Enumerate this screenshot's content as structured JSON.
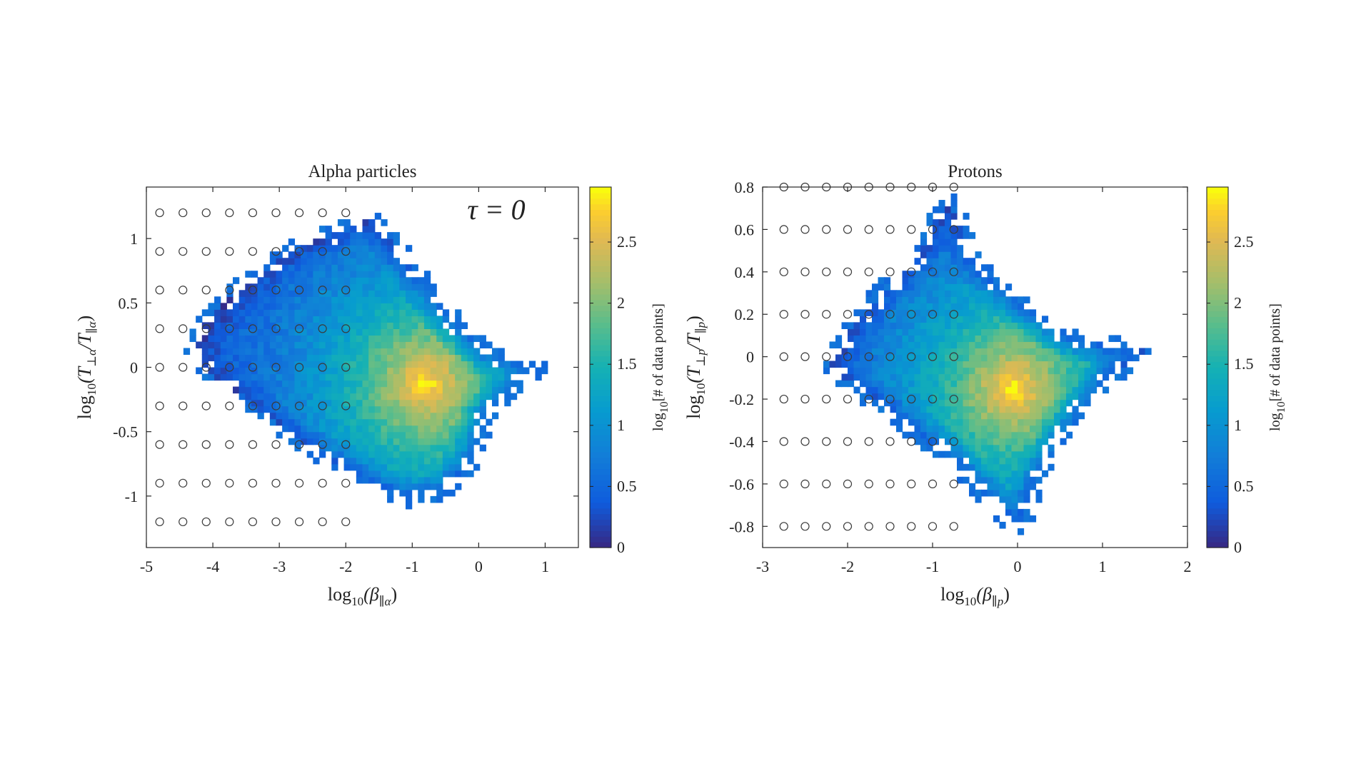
{
  "colors": {
    "background": "#ffffff",
    "axis": "#262626",
    "marker": "#3a3a3a"
  },
  "colormap": "parula",
  "chart_data": [
    {
      "type": "heatmap",
      "title": "Alpha particles",
      "annotation": "τ = 0",
      "xlabel": "log10(β∥α)",
      "xlabel_parts": {
        "base": "log",
        "sub": "10",
        "arg": "(β",
        "argsub": "∥α",
        "close": ")"
      },
      "ylabel": "log10(T⊥α/T∥α)",
      "ylabel_parts": {
        "base": "log",
        "sub": "10",
        "a": "(T",
        "asub": "⊥α",
        "mid": "/T",
        "bsub": "∥α",
        "close": ")"
      },
      "xlim": [
        -5,
        1.5
      ],
      "ylim": [
        -1.4,
        1.4
      ],
      "xticks": [
        -5,
        -4,
        -3,
        -2,
        -1,
        0,
        1
      ],
      "xtick_labels": [
        "-5",
        "-4",
        "-3",
        "-2",
        "-1",
        "0",
        "1"
      ],
      "yticks": [
        -1,
        -0.5,
        0,
        0.5,
        1
      ],
      "ytick_labels": [
        "-1",
        "-0.5",
        "0",
        "0.5",
        "1"
      ],
      "colorbar": {
        "label": "log10[# of data points]",
        "label_parts": {
          "base": "log",
          "sub": "10",
          "rest": "[# of data points]"
        },
        "range": [
          0,
          2.95
        ],
        "ticks": [
          0,
          0.5,
          1,
          1.5,
          2,
          2.5
        ],
        "tick_labels": [
          "0",
          "0.5",
          "1",
          "1.5",
          "2",
          "2.5"
        ]
      },
      "density": {
        "peak_x": -0.8,
        "peak_y": -0.13,
        "peak_value": 2.95,
        "boundary": [
          [
            -2.1,
            1.05
          ],
          [
            -1.6,
            1.15
          ],
          [
            -1.2,
            0.9
          ],
          [
            -0.7,
            0.55
          ],
          [
            -0.3,
            0.3
          ],
          [
            0.1,
            0.1
          ],
          [
            0.85,
            0.0
          ],
          [
            0.1,
            -0.35
          ],
          [
            -0.1,
            -0.7
          ],
          [
            -0.5,
            -0.95
          ],
          [
            -1.0,
            -1.03
          ],
          [
            -1.6,
            -0.9
          ],
          [
            -2.3,
            -0.7
          ],
          [
            -3.1,
            -0.4
          ],
          [
            -4.0,
            -0.05
          ],
          [
            -4.3,
            0.1
          ],
          [
            -4.1,
            0.35
          ],
          [
            -3.6,
            0.6
          ],
          [
            -3.0,
            0.85
          ],
          [
            -2.6,
            0.95
          ]
        ]
      },
      "markers": {
        "label": "grid points",
        "x": [
          -4.8,
          -4.45,
          -4.1,
          -3.75,
          -3.4,
          -3.05,
          -2.7,
          -2.35,
          -2.0
        ],
        "y": [
          1.2,
          0.9,
          0.6,
          0.3,
          0.0,
          -0.3,
          -0.6,
          -0.9,
          -1.2
        ]
      }
    },
    {
      "type": "heatmap",
      "title": "Protons",
      "xlabel": "log10(β∥p)",
      "xlabel_parts": {
        "base": "log",
        "sub": "10",
        "arg": "(β",
        "argsub": "∥p",
        "close": ")"
      },
      "ylabel": "log10(T⊥p/T∥p)",
      "ylabel_parts": {
        "base": "log",
        "sub": "10",
        "a": "(T",
        "asub": "⊥p",
        "mid": "/T",
        "bsub": "∥p",
        "close": ")"
      },
      "xlim": [
        -3,
        2
      ],
      "ylim": [
        -0.9,
        0.8
      ],
      "xticks": [
        -3,
        -2,
        -1,
        0,
        1,
        2
      ],
      "xtick_labels": [
        "-3",
        "-2",
        "-1",
        "0",
        "1",
        "2"
      ],
      "yticks": [
        -0.8,
        -0.6,
        -0.4,
        -0.2,
        0,
        0.2,
        0.4,
        0.6,
        0.8
      ],
      "ytick_labels": [
        "-0.8",
        "-0.6",
        "-0.4",
        "-0.2",
        "0",
        "0.2",
        "0.4",
        "0.6",
        "0.8"
      ],
      "colorbar": {
        "label": "log10[# of data points]",
        "label_parts": {
          "base": "log",
          "sub": "10",
          "rest": "[# of data points]"
        },
        "range": [
          0,
          2.95
        ],
        "ticks": [
          0,
          0.5,
          1,
          1.5,
          2,
          2.5
        ],
        "tick_labels": [
          "0",
          "0.5",
          "1",
          "1.5",
          "2",
          "2.5"
        ]
      },
      "density": {
        "peak_x": -0.05,
        "peak_y": -0.15,
        "peak_value": 2.95,
        "boundary": [
          [
            -0.8,
            0.72
          ],
          [
            -0.5,
            0.45
          ],
          [
            0.0,
            0.25
          ],
          [
            0.6,
            0.08
          ],
          [
            1.5,
            0.03
          ],
          [
            1.2,
            -0.05
          ],
          [
            0.7,
            -0.25
          ],
          [
            0.3,
            -0.5
          ],
          [
            0.1,
            -0.72
          ],
          [
            0.0,
            -0.8
          ],
          [
            -0.3,
            -0.7
          ],
          [
            -0.7,
            -0.5
          ],
          [
            -1.2,
            -0.35
          ],
          [
            -1.7,
            -0.2
          ],
          [
            -2.2,
            -0.05
          ],
          [
            -2.0,
            0.1
          ],
          [
            -1.6,
            0.3
          ],
          [
            -1.2,
            0.45
          ],
          [
            -0.95,
            0.65
          ]
        ]
      },
      "markers": {
        "label": "grid points",
        "x": [
          -2.75,
          -2.5,
          -2.25,
          -2.0,
          -1.75,
          -1.5,
          -1.25,
          -1.0,
          -0.75
        ],
        "y": [
          0.8,
          0.6,
          0.4,
          0.2,
          0.0,
          -0.2,
          -0.4,
          -0.6,
          -0.8
        ]
      }
    }
  ]
}
